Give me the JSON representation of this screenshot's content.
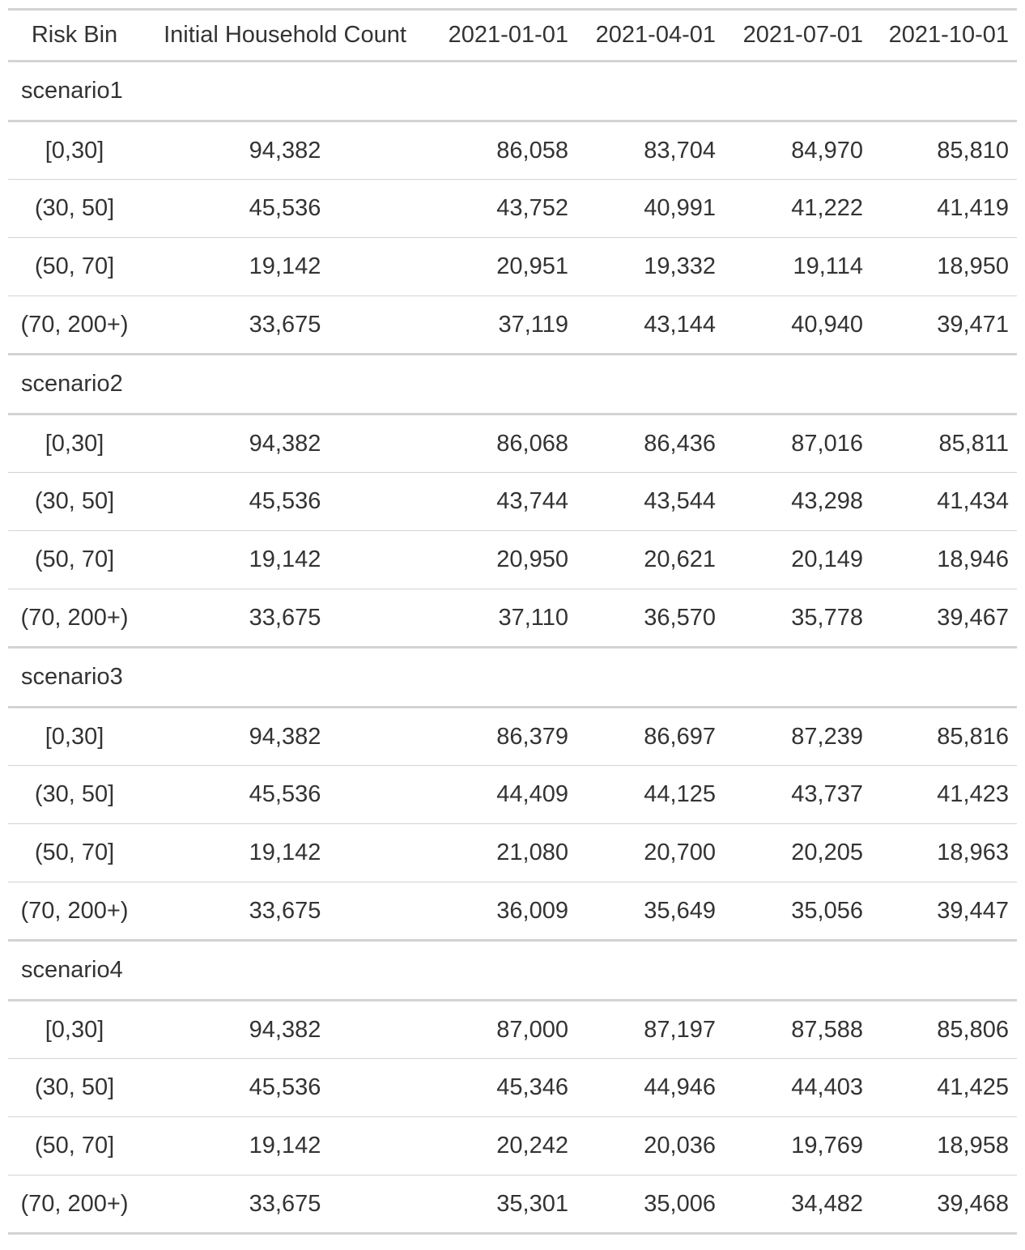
{
  "table": {
    "headers": [
      "Risk Bin",
      "Initial Household Count",
      "2021-01-01",
      "2021-04-01",
      "2021-07-01",
      "2021-10-01"
    ],
    "groups": [
      {
        "name": "scenario1",
        "rows": [
          [
            "[0,30]",
            "94,382",
            "86,058",
            "83,704",
            "84,970",
            "85,810"
          ],
          [
            "(30, 50]",
            "45,536",
            "43,752",
            "40,991",
            "41,222",
            "41,419"
          ],
          [
            "(50, 70]",
            "19,142",
            "20,951",
            "19,332",
            "19,114",
            "18,950"
          ],
          [
            "(70, 200+)",
            "33,675",
            "37,119",
            "43,144",
            "40,940",
            "39,471"
          ]
        ]
      },
      {
        "name": "scenario2",
        "rows": [
          [
            "[0,30]",
            "94,382",
            "86,068",
            "86,436",
            "87,016",
            "85,811"
          ],
          [
            "(30, 50]",
            "45,536",
            "43,744",
            "43,544",
            "43,298",
            "41,434"
          ],
          [
            "(50, 70]",
            "19,142",
            "20,950",
            "20,621",
            "20,149",
            "18,946"
          ],
          [
            "(70, 200+)",
            "33,675",
            "37,110",
            "36,570",
            "35,778",
            "39,467"
          ]
        ]
      },
      {
        "name": "scenario3",
        "rows": [
          [
            "[0,30]",
            "94,382",
            "86,379",
            "86,697",
            "87,239",
            "85,816"
          ],
          [
            "(30, 50]",
            "45,536",
            "44,409",
            "44,125",
            "43,737",
            "41,423"
          ],
          [
            "(50, 70]",
            "19,142",
            "21,080",
            "20,700",
            "20,205",
            "18,963"
          ],
          [
            "(70, 200+)",
            "33,675",
            "36,009",
            "35,649",
            "35,056",
            "39,447"
          ]
        ]
      },
      {
        "name": "scenario4",
        "rows": [
          [
            "[0,30]",
            "94,382",
            "87,000",
            "87,197",
            "87,588",
            "85,806"
          ],
          [
            "(30, 50]",
            "45,536",
            "45,346",
            "44,946",
            "44,403",
            "41,425"
          ],
          [
            "(50, 70]",
            "19,142",
            "20,242",
            "20,036",
            "19,769",
            "18,958"
          ],
          [
            "(70, 200+)",
            "33,675",
            "35,301",
            "35,006",
            "34,482",
            "39,468"
          ]
        ]
      }
    ]
  }
}
